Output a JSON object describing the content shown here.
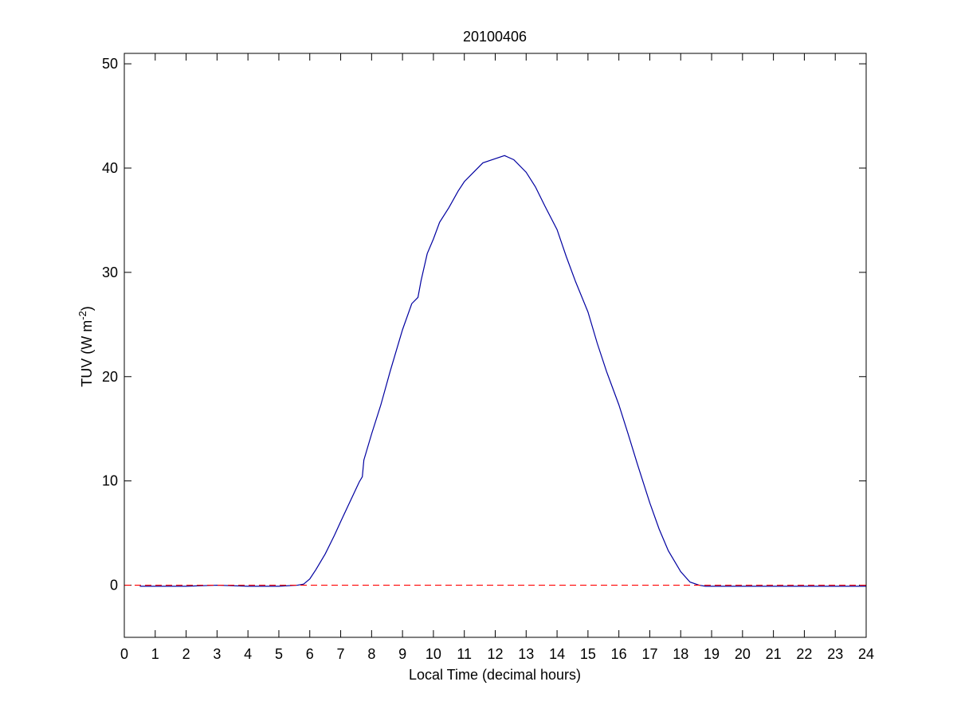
{
  "chart_data": {
    "type": "line",
    "title": "20100406",
    "xlabel": "Local Time (decimal hours)",
    "ylabel_main": "TUV (W m",
    "ylabel_sup": "-2",
    "ylabel_close": ")",
    "xlim": [
      0,
      24
    ],
    "ylim": [
      -5,
      51
    ],
    "xticks": [
      0,
      1,
      2,
      3,
      4,
      5,
      6,
      7,
      8,
      9,
      10,
      11,
      12,
      13,
      14,
      15,
      16,
      17,
      18,
      19,
      20,
      21,
      22,
      23,
      24
    ],
    "yticks": [
      0,
      10,
      20,
      30,
      40,
      50
    ],
    "grid": false,
    "series": [
      {
        "color": "#0000a0",
        "style": "solid",
        "x": [
          0.5,
          1.0,
          2.0,
          3.0,
          4.0,
          5.0,
          5.6,
          5.8,
          6.0,
          6.2,
          6.5,
          6.8,
          7.0,
          7.3,
          7.6,
          7.7,
          7.75,
          8.0,
          8.3,
          8.6,
          9.0,
          9.3,
          9.5,
          9.6,
          9.8,
          10.0,
          10.2,
          10.5,
          10.8,
          11.0,
          11.3,
          11.6,
          12.0,
          12.3,
          12.6,
          13.0,
          13.3,
          13.6,
          14.0,
          14.3,
          14.6,
          15.0,
          15.3,
          15.6,
          16.0,
          16.3,
          16.6,
          17.0,
          17.3,
          17.6,
          18.0,
          18.3,
          18.6,
          18.8,
          19.0,
          20.0,
          21.0,
          22.0,
          23.0,
          24.0
        ],
        "y": [
          -0.1,
          -0.1,
          -0.1,
          0.0,
          -0.1,
          -0.1,
          0.0,
          0.1,
          0.6,
          1.5,
          3.0,
          4.8,
          6.1,
          8.0,
          9.9,
          10.4,
          12.0,
          14.5,
          17.3,
          20.5,
          24.5,
          27.0,
          27.6,
          29.2,
          31.8,
          33.2,
          34.8,
          36.2,
          37.8,
          38.7,
          39.6,
          40.5,
          40.9,
          41.2,
          40.8,
          39.6,
          38.2,
          36.4,
          34.1,
          31.5,
          29.1,
          26.2,
          23.2,
          20.5,
          17.3,
          14.5,
          11.6,
          7.9,
          5.4,
          3.3,
          1.3,
          0.3,
          0.0,
          -0.1,
          -0.1,
          -0.1,
          -0.1,
          -0.1,
          -0.1,
          -0.1
        ]
      },
      {
        "color": "#ff0000",
        "style": "dashed",
        "x": [
          0,
          24
        ],
        "y": [
          0,
          0
        ]
      }
    ]
  }
}
